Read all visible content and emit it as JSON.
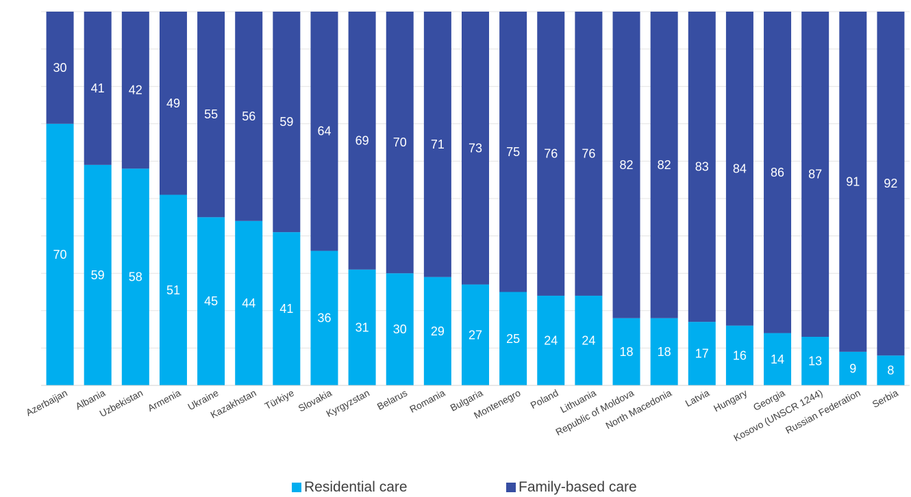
{
  "chart_data": {
    "type": "bar",
    "stacked": true,
    "orientation": "vertical",
    "ylim": [
      0,
      100
    ],
    "grid": true,
    "legend_position": "bottom",
    "categories": [
      "Azerbaijan",
      "Albania",
      "Uzbekistan",
      "Armenia",
      "Ukraine",
      "Kazakhstan",
      "Türkiye",
      "Slovakia",
      "Kyrgyzstan",
      "Belarus",
      "Romania",
      "Bulgaria",
      "Montenegro",
      "Poland",
      "Lithuania",
      "Republic of Moldova",
      "North Macedonia",
      "Latvia",
      "Hungary",
      "Georgia",
      "Kosovo (UNSCR 1244)",
      "Russian Federation",
      "Serbia"
    ],
    "series": [
      {
        "name": "Residential care",
        "color": "#00AEEF",
        "values": [
          70,
          59,
          58,
          51,
          45,
          44,
          41,
          36,
          31,
          30,
          29,
          27,
          25,
          24,
          24,
          18,
          18,
          17,
          16,
          14,
          13,
          9,
          8
        ]
      },
      {
        "name": "Family-based care",
        "color": "#374EA2",
        "values": [
          30,
          41,
          42,
          49,
          55,
          56,
          59,
          64,
          69,
          70,
          71,
          73,
          75,
          76,
          76,
          82,
          82,
          83,
          84,
          86,
          87,
          91,
          92
        ]
      }
    ]
  }
}
